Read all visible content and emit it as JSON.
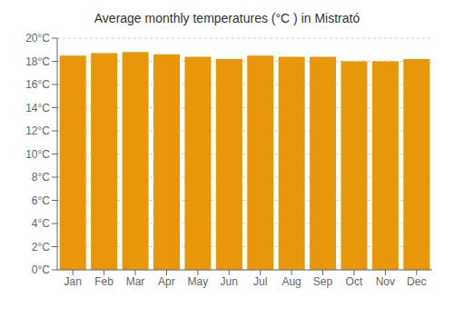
{
  "chart_data": {
    "type": "bar",
    "title": "Average monthly temperatures (°C ) in Mistrató",
    "categories": [
      "Jan",
      "Feb",
      "Mar",
      "Apr",
      "May",
      "Jun",
      "Jul",
      "Aug",
      "Sep",
      "Oct",
      "Nov",
      "Dec"
    ],
    "values": [
      18.5,
      18.7,
      18.8,
      18.6,
      18.4,
      18.2,
      18.5,
      18.4,
      18.4,
      18.0,
      18.0,
      18.2
    ],
    "color": "#E8960A",
    "ylim": [
      0,
      20
    ],
    "yticks": [
      {
        "value": 0,
        "label": "0°C"
      },
      {
        "value": 2,
        "label": "2°C"
      },
      {
        "value": 4,
        "label": "4°C"
      },
      {
        "value": 6,
        "label": "6°C"
      },
      {
        "value": 8,
        "label": "8°C"
      },
      {
        "value": 10,
        "label": "10°C"
      },
      {
        "value": 12,
        "label": "12°C"
      },
      {
        "value": 14,
        "label": "14°C"
      },
      {
        "value": 16,
        "label": "16°C"
      },
      {
        "value": 18,
        "label": "18°C"
      },
      {
        "value": 20,
        "label": "20°C"
      }
    ],
    "grid": true
  }
}
